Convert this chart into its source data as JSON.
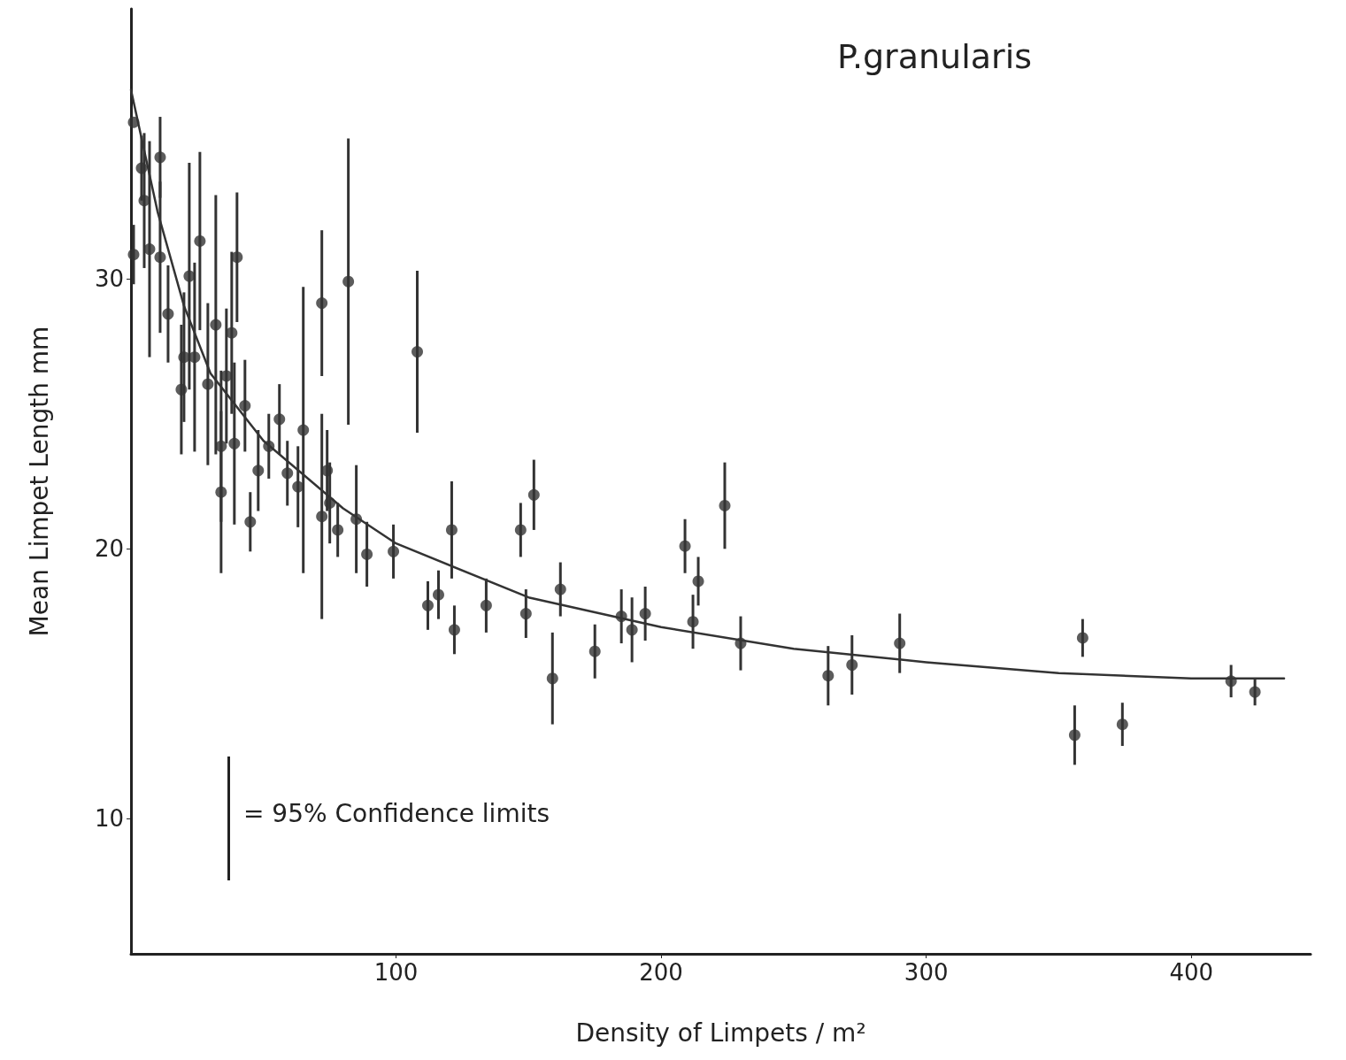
{
  "chart_data": {
    "type": "scatter",
    "subtitle": "P.granularis",
    "xlabel": "Density of Limpets / m²",
    "ylabel": "Mean Limpet Length mm",
    "xlim": [
      0,
      445
    ],
    "ylim": [
      5,
      40
    ],
    "xticks": [
      100,
      200,
      300,
      400
    ],
    "yticks": [
      10,
      20,
      30
    ],
    "grid": false,
    "marker": "circle",
    "annotations": [
      "= 95% Confidence limits"
    ],
    "series": [
      {
        "color": "#333333",
        "x": [
          1,
          1,
          4,
          5,
          7,
          11,
          11,
          14,
          19,
          20,
          22,
          24,
          26,
          29,
          32,
          34,
          34,
          36,
          38,
          39,
          40,
          43,
          45,
          48,
          52,
          56,
          59,
          63,
          65,
          72,
          72,
          74,
          75,
          78,
          82,
          85,
          89,
          99,
          108,
          112,
          116,
          121,
          122,
          134,
          147,
          149,
          152,
          159,
          162,
          175,
          185,
          189,
          194,
          209,
          212,
          214,
          224,
          230,
          263,
          272,
          290,
          356,
          359,
          374,
          415,
          424
        ],
        "values": [
          30.9,
          35.8,
          34.1,
          32.9,
          31.1,
          34.5,
          30.8,
          28.7,
          25.9,
          27.1,
          30.1,
          27.1,
          31.4,
          26.1,
          28.3,
          23.8,
          22.1,
          26.4,
          28.0,
          23.9,
          30.8,
          25.3,
          21.0,
          22.9,
          23.8,
          24.8,
          22.8,
          22.3,
          24.4,
          21.2,
          29.1,
          22.9,
          21.7,
          20.7,
          29.9,
          21.1,
          19.8,
          19.9,
          27.3,
          17.9,
          18.3,
          20.7,
          17.0,
          17.9,
          20.7,
          17.6,
          22.0,
          15.2,
          18.5,
          16.2,
          17.5,
          17.0,
          17.6,
          20.1,
          17.3,
          18.8,
          21.6,
          16.5,
          15.3,
          15.7,
          16.5,
          13.1,
          16.7,
          13.5,
          15.1,
          14.7
        ],
        "errors": [
          1.1,
          null,
          1.2,
          2.5,
          4.0,
          1.5,
          2.8,
          1.8,
          2.4,
          2.4,
          4.2,
          3.5,
          3.3,
          3.0,
          4.8,
          2.8,
          3.0,
          2.5,
          3.0,
          3.0,
          2.4,
          1.7,
          1.1,
          1.5,
          1.2,
          1.3,
          1.2,
          1.5,
          5.3,
          3.8,
          2.7,
          1.5,
          1.5,
          1.0,
          5.3,
          2.0,
          1.2,
          1.0,
          3.0,
          0.9,
          0.9,
          1.8,
          0.9,
          1.0,
          1.0,
          0.9,
          1.3,
          1.7,
          1.0,
          1.0,
          1.0,
          1.2,
          1.0,
          1.0,
          1.0,
          0.9,
          1.6,
          1.0,
          1.1,
          1.1,
          1.1,
          1.1,
          0.7,
          0.8,
          0.6,
          0.5
        ]
      },
      {
        "type": "line",
        "color": "#333333",
        "line_style": "solid",
        "marker": "none",
        "x": [
          0,
          10,
          20,
          30,
          50,
          80,
          100,
          150,
          200,
          250,
          300,
          350,
          400,
          435
        ],
        "values": [
          37.0,
          32.5,
          29.0,
          26.5,
          24.0,
          21.5,
          20.2,
          18.2,
          17.1,
          16.3,
          15.8,
          15.4,
          15.2,
          15.2
        ]
      }
    ]
  }
}
